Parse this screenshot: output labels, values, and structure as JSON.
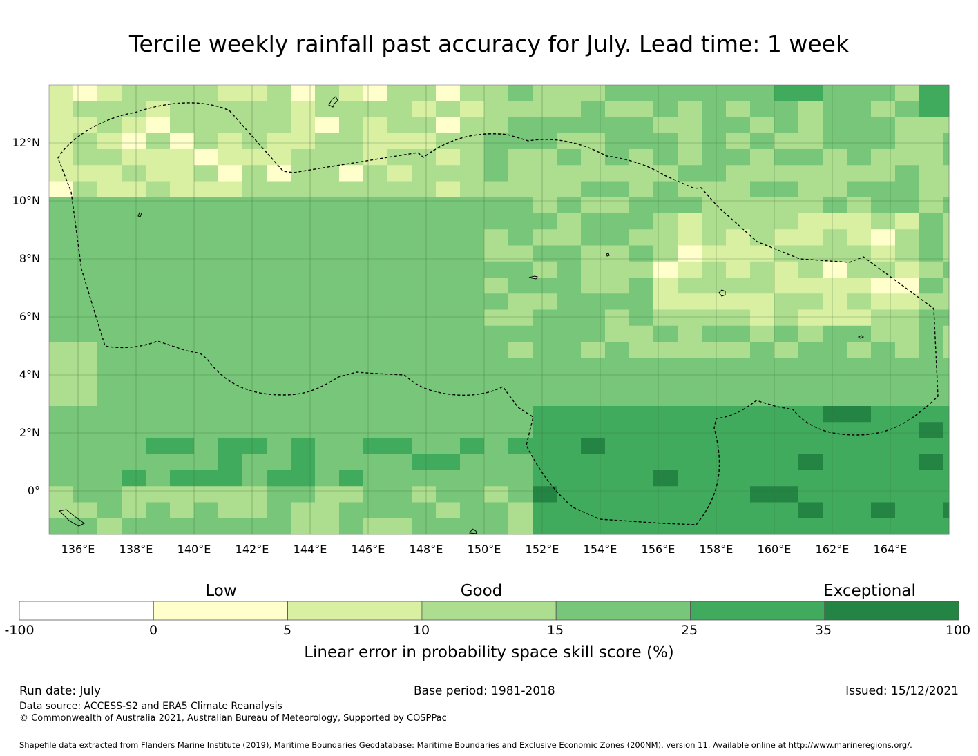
{
  "title": "Tercile weekly rainfall past accuracy for July. Lead time: 1 week",
  "map": {
    "lon_range": [
      135,
      166
    ],
    "lat_range": [
      -1.5,
      14
    ],
    "lat_labels": [
      "12°N",
      "10°N",
      "8°N",
      "6°N",
      "4°N",
      "2°N",
      "0°"
    ],
    "lon_labels": [
      "136°E",
      "138°E",
      "140°E",
      "142°E",
      "144°E",
      "146°E",
      "148°E",
      "150°E",
      "152°E",
      "154°E",
      "156°E",
      "158°E",
      "160°E",
      "162°E",
      "164°E"
    ],
    "boundary_style": "dashed black line",
    "gridlines": true
  },
  "colorbar": {
    "categories": [
      "Low",
      "Good",
      "Exceptional"
    ],
    "ticks": [
      "-100",
      "0",
      "5",
      "10",
      "15",
      "25",
      "35",
      "100"
    ],
    "colors": [
      "#ffffff",
      "#ffffcc",
      "#d9f0a3",
      "#addd8e",
      "#78c679",
      "#41ab5d",
      "#238443"
    ],
    "label": "Linear error in probability space skill score (%)"
  },
  "footer": {
    "run_date": "Run date: July",
    "base_period": "Base period: 1981-2018",
    "issued": "Issued: 15/12/2021",
    "data_source": "Data source: ACCESS-S2 and ERA5 Climate Reanalysis",
    "copyright": "© Commonwealth of Australia 2021, Australian Bureau of Meteorology, Supported by COSPPac",
    "shapefile": "Shapefile data extracted from Flanders Marine Institute (2019), Maritime Boundaries Geodatabase: Maritime Boundaries and Exclusive Economic Zones (200NM), version 11. Available online at http://www.marineregions.org/."
  }
}
